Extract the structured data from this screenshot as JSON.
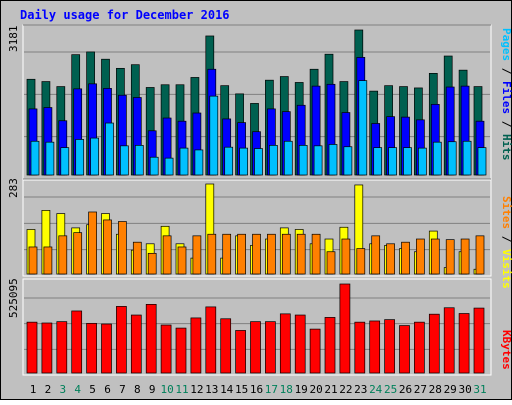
{
  "chart_data": [
    {
      "type": "bar",
      "title": "Daily usage for December 2016",
      "ymax_label": "3181",
      "legend": [
        {
          "label": "Pages",
          "color": "#00C0FF"
        },
        {
          "label": "Files",
          "color": "#0000FF"
        },
        {
          "label": "Hits",
          "color": "#006050"
        }
      ],
      "legend_seps": [
        "/",
        "/"
      ],
      "categories": [
        "1",
        "2",
        "3",
        "4",
        "5",
        "6",
        "7",
        "8",
        "9",
        "10",
        "11",
        "12",
        "13",
        "14",
        "15",
        "16",
        "17",
        "18",
        "19",
        "20",
        "21",
        "22",
        "23",
        "24",
        "25",
        "26",
        "27",
        "28",
        "29",
        "30",
        "31"
      ],
      "weekend_days": [
        "3",
        "4",
        "10",
        "11",
        "17",
        "18",
        "24",
        "25",
        "31"
      ],
      "ylim": [
        0,
        3181
      ],
      "series": [
        {
          "name": "Hits",
          "color": "#006050",
          "values": [
            2100,
            2050,
            1940,
            2640,
            2700,
            2540,
            2340,
            2420,
            1920,
            1980,
            1980,
            2140,
            3050,
            1960,
            1780,
            1570,
            2080,
            2160,
            2030,
            2320,
            2650,
            2050,
            3181,
            1840,
            1960,
            1940,
            1910,
            2230,
            2610,
            2300,
            1940
          ]
        },
        {
          "name": "Files",
          "color": "#0000FF",
          "values": [
            1450,
            1480,
            1190,
            1890,
            2000,
            1900,
            1750,
            1700,
            970,
            1250,
            1180,
            1360,
            2320,
            1230,
            1150,
            950,
            1450,
            1390,
            1530,
            1950,
            1990,
            1370,
            2580,
            1130,
            1280,
            1270,
            1210,
            1550,
            1930,
            1950,
            1180
          ]
        },
        {
          "name": "Pages",
          "color": "#00C0FF",
          "values": [
            740,
            720,
            600,
            780,
            810,
            1140,
            640,
            650,
            390,
            370,
            590,
            550,
            1730,
            610,
            590,
            580,
            650,
            740,
            650,
            640,
            670,
            620,
            2070,
            600,
            600,
            600,
            590,
            720,
            730,
            740,
            600
          ]
        }
      ]
    },
    {
      "type": "bar",
      "ymax_label": "283",
      "legend": [
        {
          "label": "Sites",
          "color": "#FF8000"
        },
        {
          "label": "Visits",
          "color": "#FFFF00"
        }
      ],
      "legend_seps": [
        "/"
      ],
      "categories": [
        "1",
        "2",
        "3",
        "4",
        "5",
        "6",
        "7",
        "8",
        "9",
        "10",
        "11",
        "12",
        "13",
        "14",
        "15",
        "16",
        "17",
        "18",
        "19",
        "20",
        "21",
        "22",
        "23",
        "24",
        "25",
        "26",
        "27",
        "28",
        "29",
        "30",
        "31"
      ],
      "ylim": [
        0,
        283
      ],
      "series": [
        {
          "name": "Visits",
          "color": "#FFFF00",
          "values": [
            140,
            200,
            190,
            145,
            155,
            190,
            125,
            75,
            95,
            150,
            95,
            50,
            283,
            50,
            120,
            90,
            110,
            145,
            140,
            95,
            110,
            147,
            280,
            95,
            90,
            80,
            70,
            135,
            20,
            70,
            15
          ]
        },
        {
          "name": "Sites",
          "color": "#FF8000",
          "values": [
            85,
            85,
            120,
            130,
            195,
            170,
            165,
            100,
            65,
            120,
            85,
            120,
            125,
            125,
            125,
            125,
            125,
            125,
            125,
            125,
            70,
            110,
            80,
            120,
            95,
            100,
            110,
            110,
            108,
            110,
            120
          ]
        }
      ]
    },
    {
      "type": "bar",
      "ymax_label": "525095",
      "legend": [
        {
          "label": "KBytes",
          "color": "#FF0000"
        }
      ],
      "legend_seps": [],
      "categories": [
        "1",
        "2",
        "3",
        "4",
        "5",
        "6",
        "7",
        "8",
        "9",
        "10",
        "11",
        "12",
        "13",
        "14",
        "15",
        "16",
        "17",
        "18",
        "19",
        "20",
        "21",
        "22",
        "23",
        "24",
        "25",
        "26",
        "27",
        "28",
        "29",
        "30",
        "31"
      ],
      "ylim": [
        0,
        525095
      ],
      "series": [
        {
          "name": "KBytes",
          "color": "#FF0000",
          "values": [
            300000,
            295000,
            303000,
            366000,
            293000,
            289000,
            393000,
            342000,
            405000,
            283000,
            265000,
            325000,
            390000,
            320000,
            251000,
            303000,
            303000,
            349000,
            342000,
            259000,
            328000,
            525095,
            300000,
            307000,
            315000,
            280000,
            300000,
            347000,
            385000,
            351000,
            383000
          ]
        }
      ]
    }
  ]
}
